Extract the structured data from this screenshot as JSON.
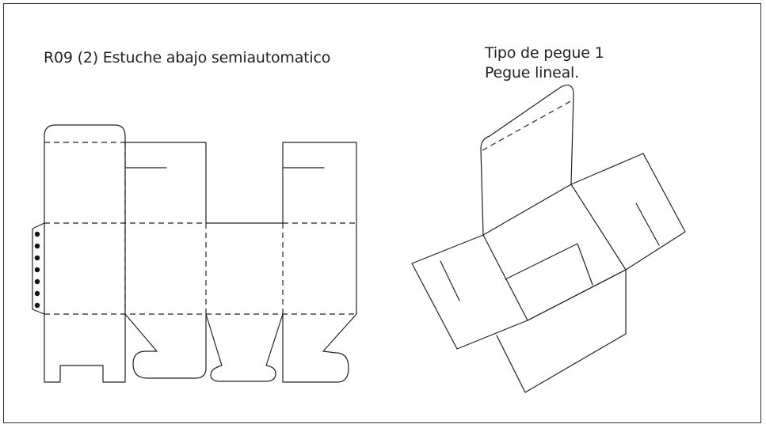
{
  "diagram": {
    "title": "R09 (2) Estuche abajo semiautomatico",
    "glue_type": "Tipo de pegue 1",
    "glue_desc": "Pegue lineal."
  },
  "colors": {
    "line": "#222222",
    "background": "#ffffff",
    "border": "#333333"
  }
}
